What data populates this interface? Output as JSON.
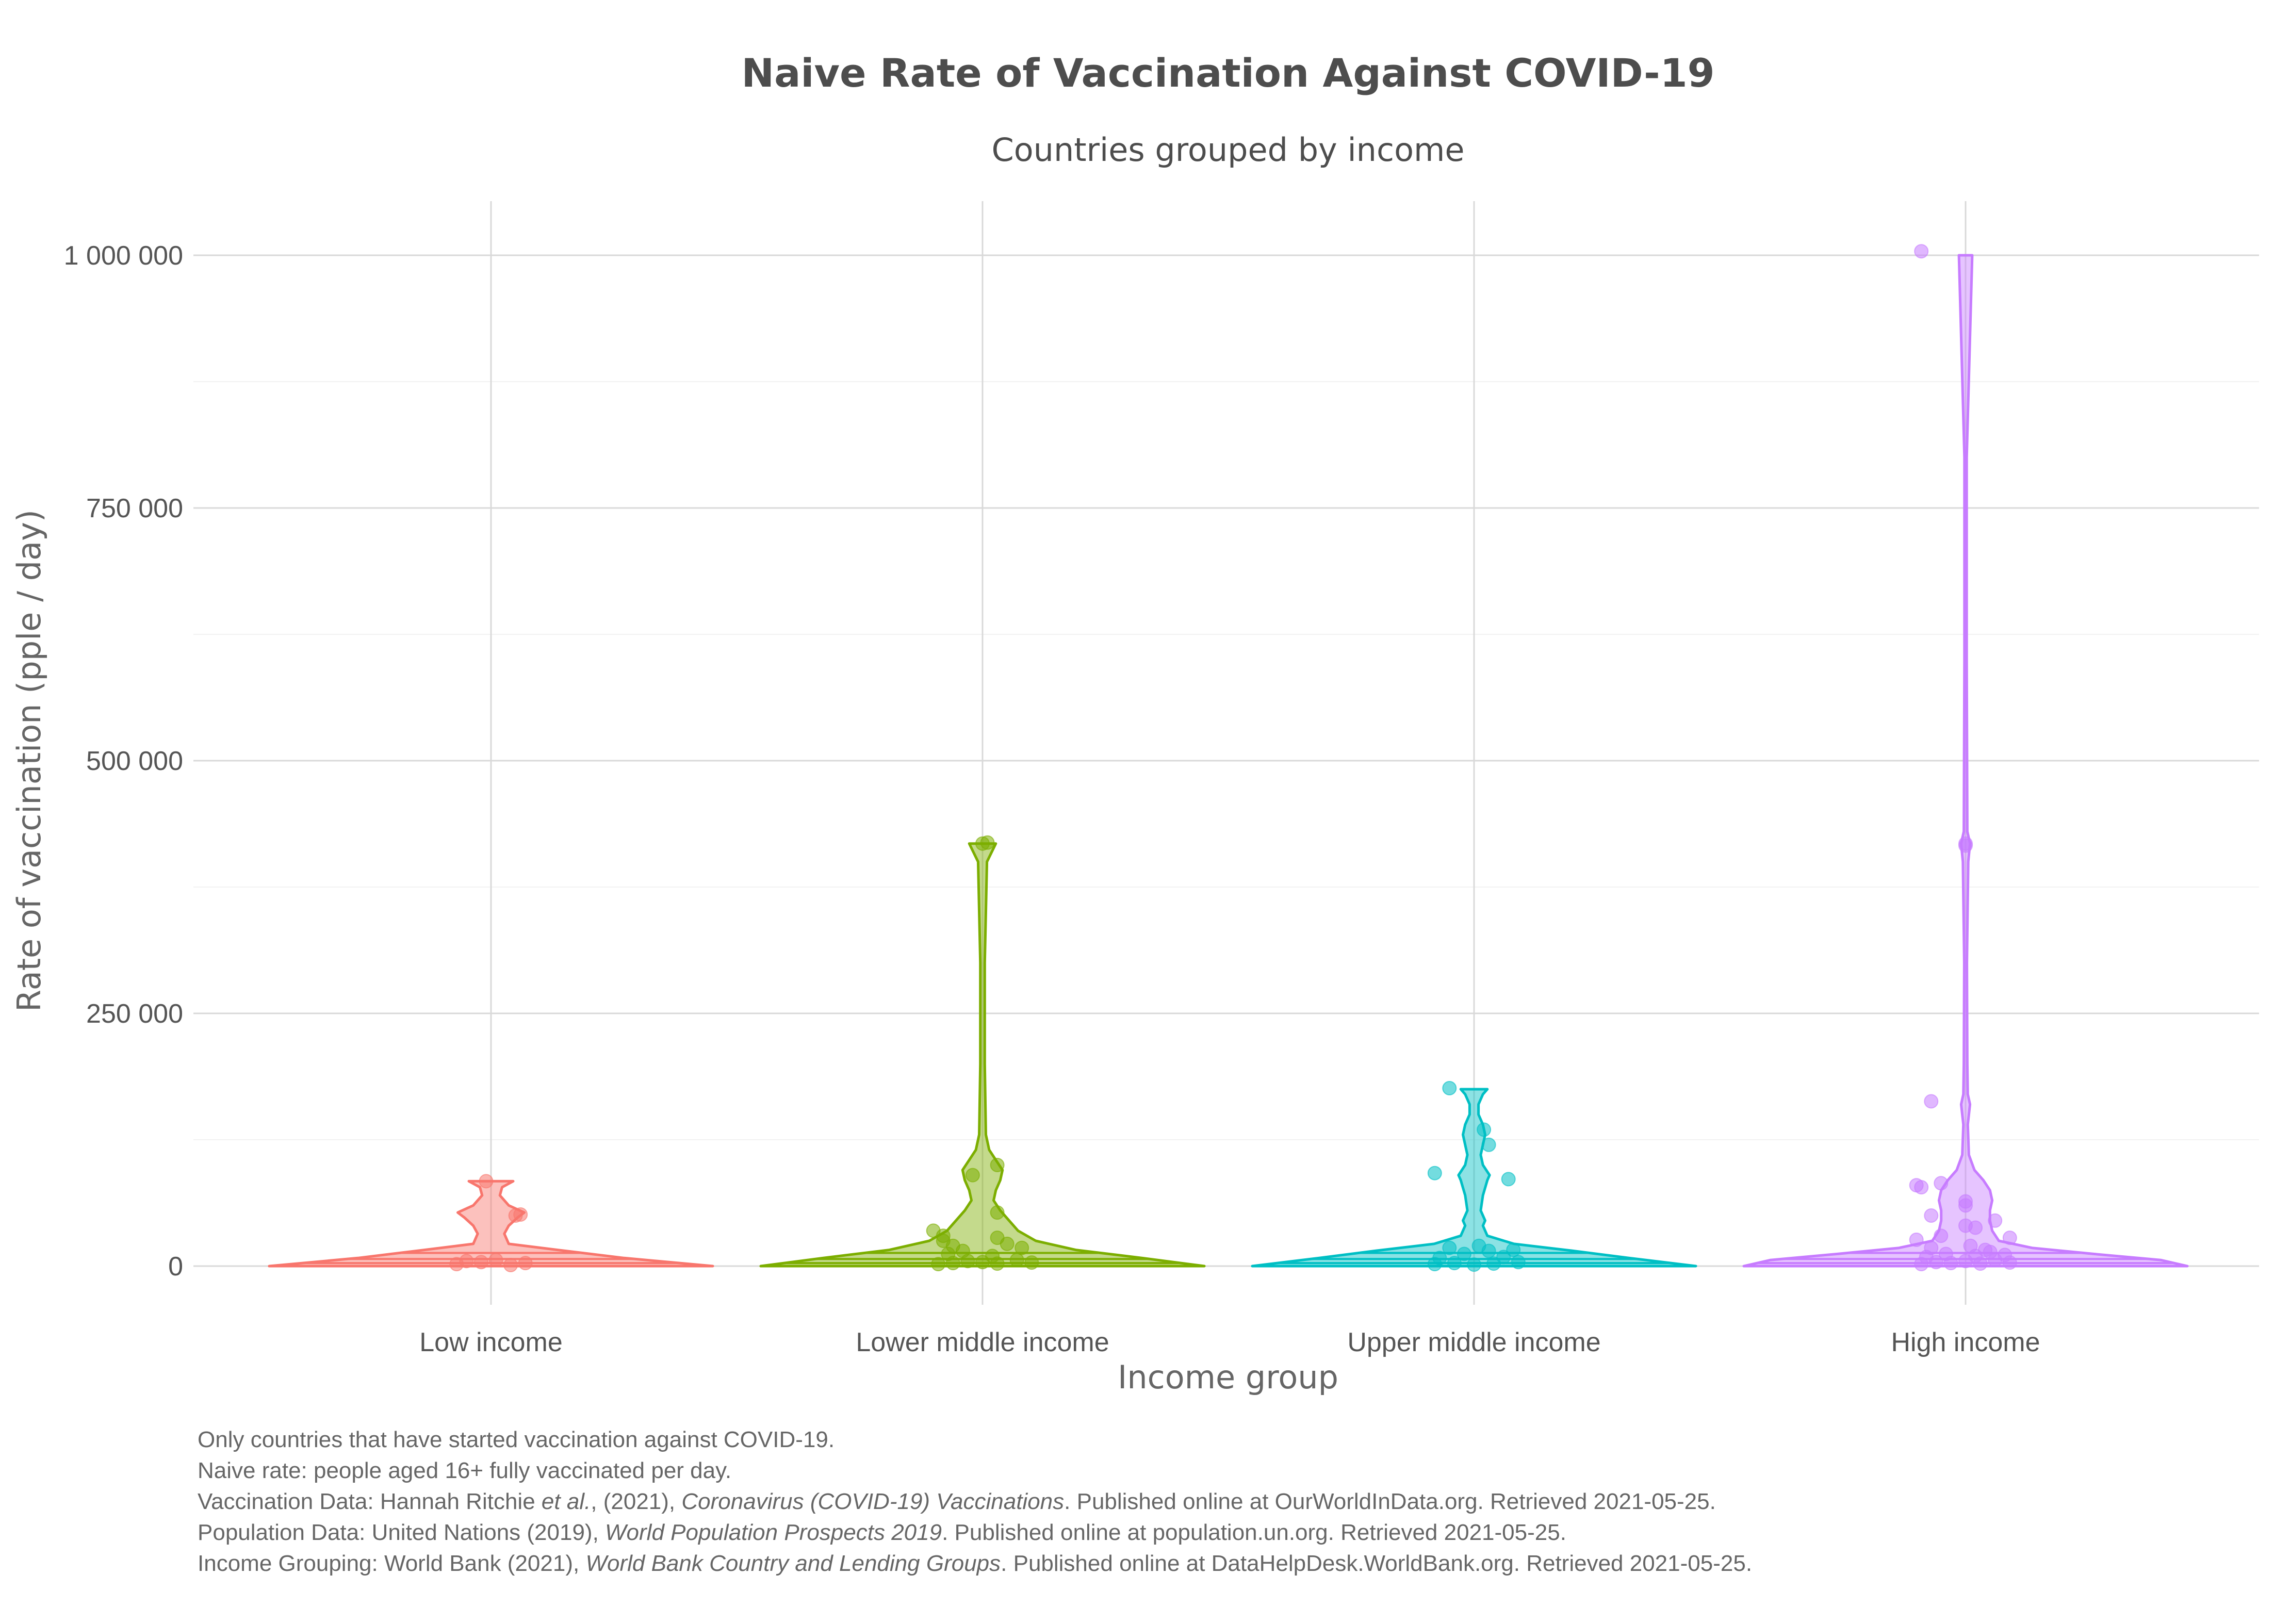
{
  "chart_data": {
    "type": "violin",
    "title": "Naive Rate of Vaccination Against COVID-19",
    "subtitle": "Countries grouped by income",
    "xlabel": "Income group",
    "ylabel": "Rate of vaccination (pple / day)",
    "ylim": [
      -45000,
      1055000
    ],
    "yticks": [
      0,
      250000,
      500000,
      750000,
      1000000
    ],
    "ytick_labels": [
      "0",
      "250 000",
      "500 000",
      "750 000",
      "1 000 000"
    ],
    "grid": true,
    "legend": "none",
    "categories": [
      "Low income",
      "Lower middle income",
      "Upper middle income",
      "High income"
    ],
    "series": [
      {
        "category": "Low income",
        "color": "#F8766D",
        "violin_max": 84000,
        "violin_widths": [
          [
            0,
            1.0
          ],
          [
            8000,
            0.6
          ],
          [
            16000,
            0.3
          ],
          [
            22000,
            0.08
          ],
          [
            32000,
            0.06
          ],
          [
            40000,
            0.08
          ],
          [
            48000,
            0.12
          ],
          [
            53000,
            0.15
          ],
          [
            60000,
            0.08
          ],
          [
            70000,
            0.04
          ],
          [
            78000,
            0.05
          ],
          [
            84000,
            0.1
          ]
        ],
        "points": [
          {
            "x": -0.07,
            "y": 2000
          },
          {
            "x": -0.02,
            "y": 4000
          },
          {
            "x": 0.04,
            "y": 1000
          },
          {
            "x": 0.07,
            "y": 3000
          },
          {
            "x": 0.01,
            "y": 6000
          },
          {
            "x": -0.05,
            "y": 5000
          },
          {
            "x": 0.05,
            "y": 50000
          },
          {
            "x": 0.06,
            "y": 51000
          },
          {
            "x": -0.01,
            "y": 84000
          }
        ]
      },
      {
        "category": "Lower middle income",
        "color": "#7CAE00",
        "violin_max": 418000,
        "violin_widths": [
          [
            0,
            1.0
          ],
          [
            8000,
            0.72
          ],
          [
            16000,
            0.42
          ],
          [
            25000,
            0.24
          ],
          [
            35000,
            0.16
          ],
          [
            45000,
            0.12
          ],
          [
            55000,
            0.08
          ],
          [
            65000,
            0.05
          ],
          [
            75000,
            0.06
          ],
          [
            85000,
            0.08
          ],
          [
            95000,
            0.09
          ],
          [
            105000,
            0.06
          ],
          [
            115000,
            0.03
          ],
          [
            130000,
            0.015
          ],
          [
            200000,
            0.01
          ],
          [
            300000,
            0.01
          ],
          [
            400000,
            0.02
          ],
          [
            418000,
            0.06
          ]
        ],
        "points": [
          {
            "x": -0.09,
            "y": 2000
          },
          {
            "x": -0.06,
            "y": 3000
          },
          {
            "x": -0.03,
            "y": 5000
          },
          {
            "x": 0.0,
            "y": 4000
          },
          {
            "x": 0.03,
            "y": 2500
          },
          {
            "x": 0.07,
            "y": 6000
          },
          {
            "x": 0.1,
            "y": 3500
          },
          {
            "x": -0.07,
            "y": 12000
          },
          {
            "x": -0.04,
            "y": 15000
          },
          {
            "x": 0.02,
            "y": 10000
          },
          {
            "x": 0.08,
            "y": 18000
          },
          {
            "x": -0.06,
            "y": 20000
          },
          {
            "x": -0.08,
            "y": 25000
          },
          {
            "x": 0.05,
            "y": 22000
          },
          {
            "x": -0.1,
            "y": 35000
          },
          {
            "x": -0.08,
            "y": 30000
          },
          {
            "x": 0.03,
            "y": 28000
          },
          {
            "x": 0.03,
            "y": 53000
          },
          {
            "x": -0.02,
            "y": 90000
          },
          {
            "x": 0.03,
            "y": 100000
          },
          {
            "x": 0.0,
            "y": 418000
          },
          {
            "x": 0.01,
            "y": 419000
          }
        ]
      },
      {
        "category": "Upper middle income",
        "color": "#00BFC4",
        "violin_max": 175000,
        "violin_widths": [
          [
            0,
            1.0
          ],
          [
            8000,
            0.7
          ],
          [
            15000,
            0.45
          ],
          [
            22000,
            0.18
          ],
          [
            30000,
            0.06
          ],
          [
            40000,
            0.04
          ],
          [
            45000,
            0.05
          ],
          [
            55000,
            0.03
          ],
          [
            70000,
            0.04
          ],
          [
            85000,
            0.06
          ],
          [
            90000,
            0.07
          ],
          [
            100000,
            0.04
          ],
          [
            110000,
            0.03
          ],
          [
            120000,
            0.04
          ],
          [
            130000,
            0.05
          ],
          [
            140000,
            0.04
          ],
          [
            150000,
            0.02
          ],
          [
            160000,
            0.02
          ],
          [
            170000,
            0.04
          ],
          [
            175000,
            0.06
          ]
        ],
        "points": [
          {
            "x": -0.08,
            "y": 2000
          },
          {
            "x": -0.04,
            "y": 3000
          },
          {
            "x": 0.0,
            "y": 1500
          },
          {
            "x": 0.04,
            "y": 2500
          },
          {
            "x": 0.09,
            "y": 4000
          },
          {
            "x": -0.07,
            "y": 8000
          },
          {
            "x": 0.06,
            "y": 9000
          },
          {
            "x": -0.02,
            "y": 12000
          },
          {
            "x": 0.03,
            "y": 15000
          },
          {
            "x": -0.05,
            "y": 18000
          },
          {
            "x": 0.01,
            "y": 20000
          },
          {
            "x": 0.08,
            "y": 16000
          },
          {
            "x": -0.08,
            "y": 92000
          },
          {
            "x": 0.07,
            "y": 86000
          },
          {
            "x": 0.03,
            "y": 120000
          },
          {
            "x": 0.02,
            "y": 135000
          },
          {
            "x": -0.05,
            "y": 176000
          }
        ]
      },
      {
        "category": "High income",
        "color": "#C77CFF",
        "violin_max": 1000000,
        "violin_widths": [
          [
            0,
            1.0
          ],
          [
            6000,
            0.88
          ],
          [
            12000,
            0.58
          ],
          [
            18000,
            0.3
          ],
          [
            25000,
            0.15
          ],
          [
            35000,
            0.12
          ],
          [
            45000,
            0.11
          ],
          [
            55000,
            0.11
          ],
          [
            65000,
            0.12
          ],
          [
            75000,
            0.11
          ],
          [
            85000,
            0.08
          ],
          [
            95000,
            0.04
          ],
          [
            110000,
            0.015
          ],
          [
            140000,
            0.01
          ],
          [
            160000,
            0.02
          ],
          [
            170000,
            0.01
          ],
          [
            200000,
            0.008
          ],
          [
            300000,
            0.006
          ],
          [
            400000,
            0.012
          ],
          [
            418000,
            0.02
          ],
          [
            430000,
            0.008
          ],
          [
            600000,
            0.005
          ],
          [
            800000,
            0.005
          ],
          [
            1000000,
            0.03
          ]
        ],
        "points": [
          {
            "x": -0.09,
            "y": 2000
          },
          {
            "x": -0.06,
            "y": 4000
          },
          {
            "x": -0.03,
            "y": 3000
          },
          {
            "x": 0.0,
            "y": 5000
          },
          {
            "x": 0.03,
            "y": 2500
          },
          {
            "x": 0.06,
            "y": 6000
          },
          {
            "x": 0.09,
            "y": 3500
          },
          {
            "x": -0.08,
            "y": 9000
          },
          {
            "x": -0.04,
            "y": 12000
          },
          {
            "x": 0.02,
            "y": 10000
          },
          {
            "x": 0.05,
            "y": 14000
          },
          {
            "x": 0.08,
            "y": 11000
          },
          {
            "x": -0.07,
            "y": 18000
          },
          {
            "x": 0.01,
            "y": 20000
          },
          {
            "x": 0.04,
            "y": 16000
          },
          {
            "x": -0.1,
            "y": 26000
          },
          {
            "x": -0.05,
            "y": 30000
          },
          {
            "x": 0.09,
            "y": 28000
          },
          {
            "x": 0.0,
            "y": 40000
          },
          {
            "x": 0.02,
            "y": 38000
          },
          {
            "x": 0.06,
            "y": 45000
          },
          {
            "x": -0.1,
            "y": 80000
          },
          {
            "x": -0.09,
            "y": 78000
          },
          {
            "x": -0.05,
            "y": 82000
          },
          {
            "x": -0.07,
            "y": 50000
          },
          {
            "x": 0.0,
            "y": 60000
          },
          {
            "x": 0.0,
            "y": 64000
          },
          {
            "x": -0.07,
            "y": 163000
          },
          {
            "x": 0.0,
            "y": 418000
          },
          {
            "x": 0.0,
            "y": 416000
          },
          {
            "x": -0.09,
            "y": 1004000
          }
        ]
      }
    ]
  },
  "caption": {
    "line1": "Only countries that have started vaccination against COVID-19.",
    "line2": "Naive rate: people aged 16+ fully vaccinated per day.",
    "line3": [
      "Vaccination Data: Hannah Ritchie ",
      "et al.",
      ", (2021), ",
      "Coronavirus (COVID-19) Vaccinations",
      ". Published online at OurWorldInData.org. Retrieved 2021-05-25."
    ],
    "line4": [
      "Population Data: United Nations (2019), ",
      "World Population Prospects 2019",
      ". Published online at population.un.org. Retrieved 2021-05-25."
    ],
    "line5": [
      "Income Grouping: World Bank (2021), ",
      "World Bank Country and Lending Groups",
      ". Published online at DataHelpDesk.WorldBank.org. Retrieved 2021-05-25."
    ]
  }
}
